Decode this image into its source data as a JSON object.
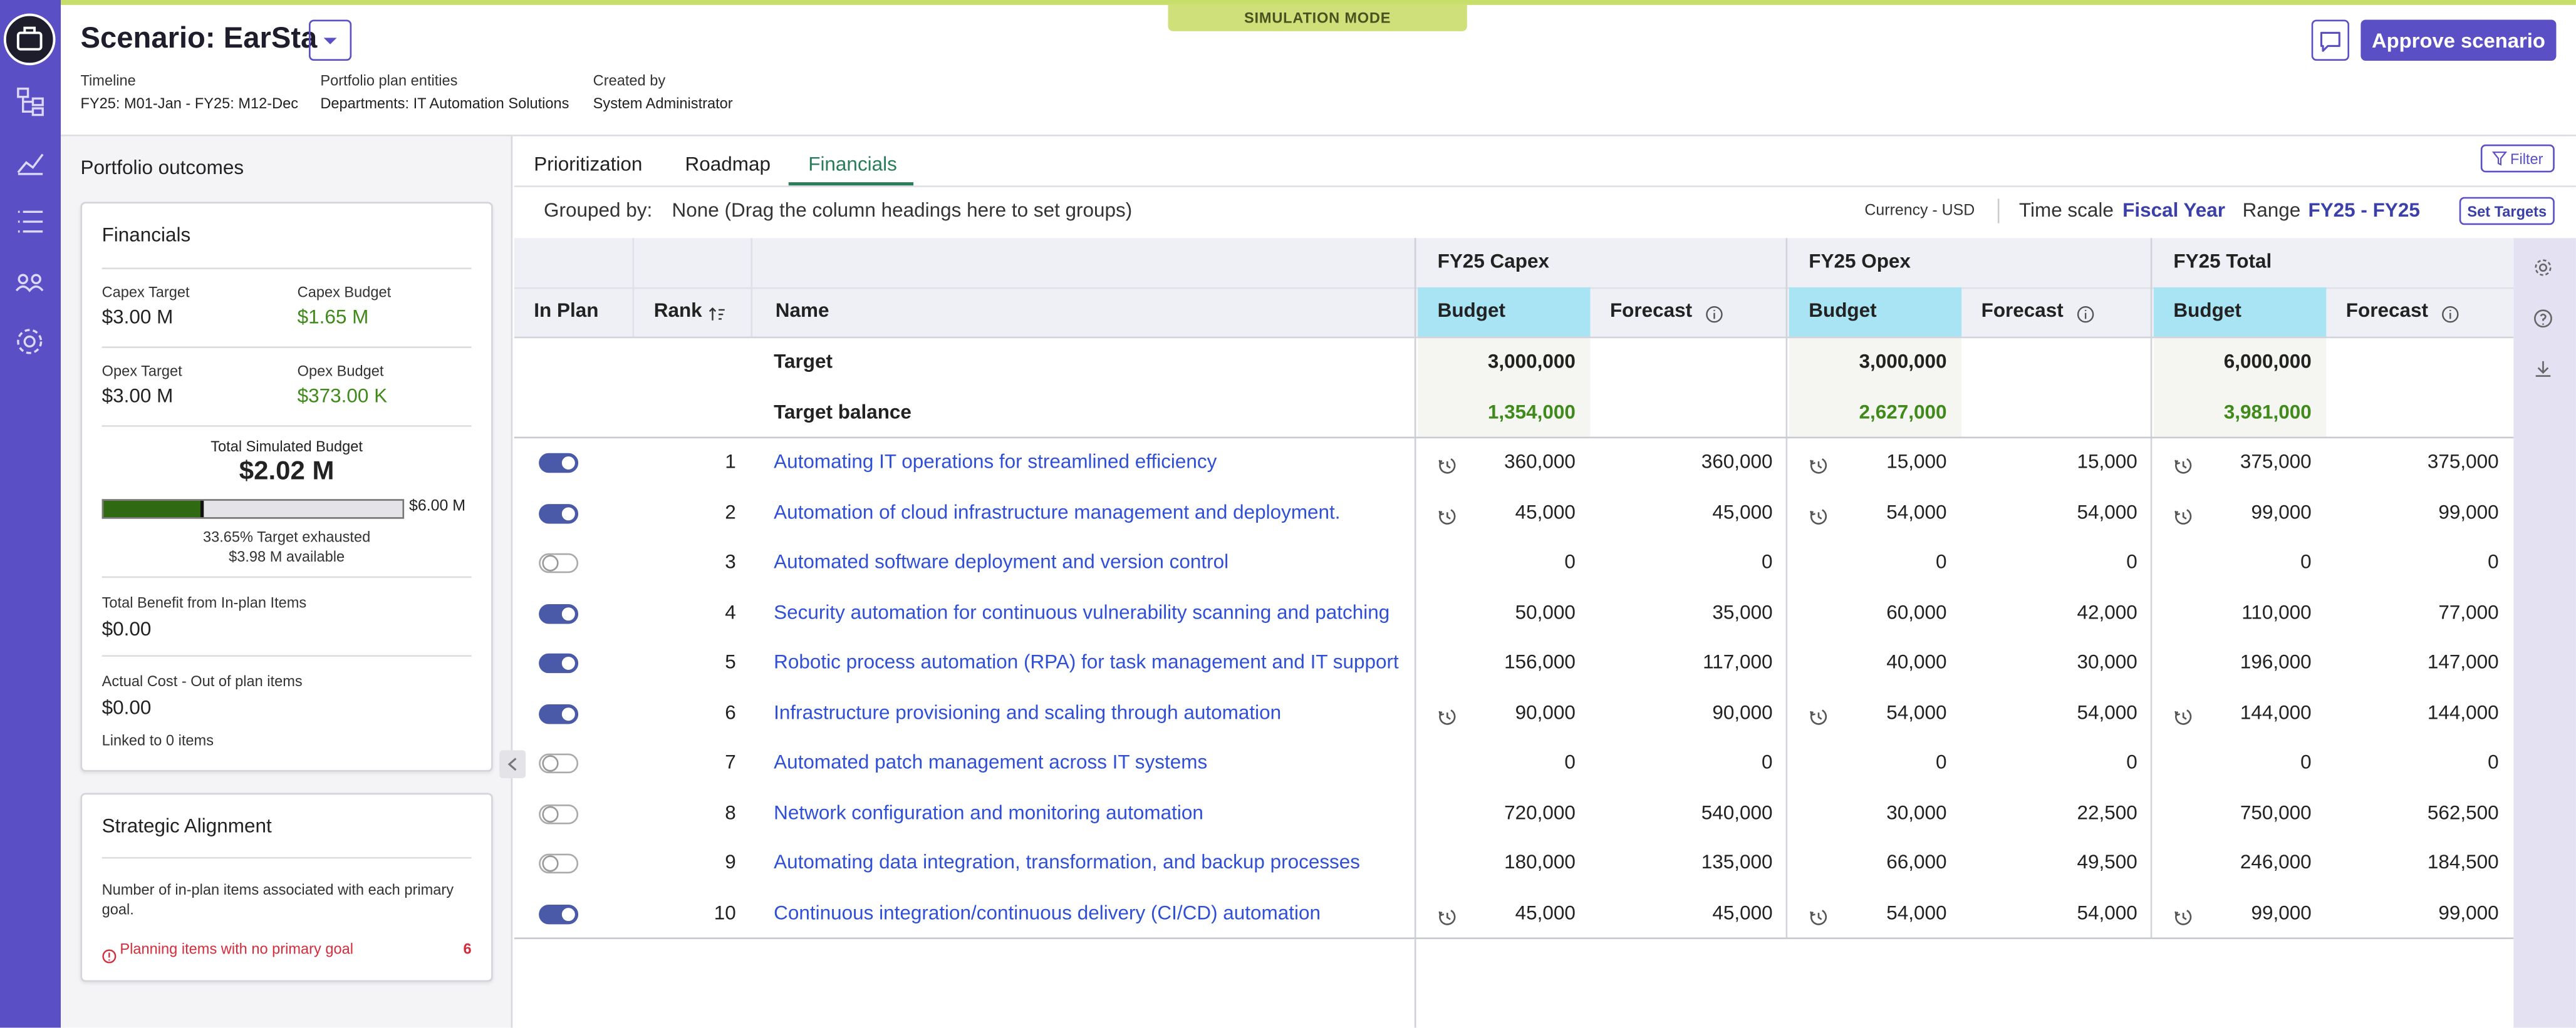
{
  "header": {
    "title": "Scenario: EarSta",
    "mode": "SIMULATION MODE",
    "approve": "Approve scenario",
    "meta": [
      {
        "label": "Timeline",
        "value": "FY25: M01-Jan - FY25: M12-Dec"
      },
      {
        "label": "Portfolio plan entities",
        "value": "Departments: IT Automation Solutions"
      },
      {
        "label": "Created by",
        "value": "System Administrator"
      }
    ]
  },
  "outcomes": {
    "title": "Portfolio outcomes",
    "financials": {
      "title": "Financials",
      "stats": [
        {
          "label": "Capex Target",
          "value": "$3.00 M"
        },
        {
          "label": "Capex Budget",
          "value": "$1.65 M"
        },
        {
          "label": "Opex Target",
          "value": "$3.00 M"
        },
        {
          "label": "Opex Budget",
          "value": "$373.00 K"
        }
      ],
      "total_label": "Total Simulated Budget",
      "total": "$2.02 M",
      "max": "$6.00 M",
      "progress": 33.65,
      "exhausted": "33.65% Target exhausted",
      "available": "$3.98 M available",
      "benefit_label": "Total Benefit from In-plan Items",
      "benefit": "$0.00",
      "cost_label": "Actual Cost - Out of plan items",
      "cost": "$0.00",
      "linked": "Linked to 0 items"
    },
    "alignment": {
      "title": "Strategic Alignment",
      "description": "Number of in-plan items associated with each primary goal.",
      "warning": "Planning items with no primary goal",
      "warning_count": 6
    }
  },
  "tabs": {
    "items": [
      "Prioritization",
      "Roadmap",
      "Financials"
    ],
    "active": 2
  },
  "toolbar": {
    "filter": "Filter",
    "grouped_label": "Grouped by:",
    "grouped_value": "None (Drag the column headings here to set groups)",
    "currency": "Currency - USD",
    "time_scale_label": "Time scale",
    "time_scale": "Fiscal Year",
    "range_label": "Range",
    "range": "FY25 - FY25",
    "set_targets": "Set Targets"
  },
  "table": {
    "columns": [
      "In Plan",
      "Rank",
      "Name"
    ],
    "groups": [
      "FY25 Capex",
      "FY25 Opex",
      "FY25 Total"
    ],
    "measures": [
      "Budget",
      "Forecast"
    ],
    "target": {
      "label": "Target",
      "values": [
        "3,000,000",
        "3,000,000",
        "6,000,000"
      ]
    },
    "balance": {
      "label": "Target balance",
      "values": [
        "1,354,000",
        "2,627,000",
        "3,981,000"
      ]
    },
    "rows": [
      {
        "in_plan": true,
        "rank": 1,
        "name": "Automating IT operations for streamlined efficiency",
        "history": true,
        "values": [
          "360,000",
          "360,000",
          "15,000",
          "15,000",
          "375,000",
          "375,000"
        ]
      },
      {
        "in_plan": true,
        "rank": 2,
        "name": "Automation of cloud infrastructure management and deployment.",
        "history": true,
        "values": [
          "45,000",
          "45,000",
          "54,000",
          "54,000",
          "99,000",
          "99,000"
        ]
      },
      {
        "in_plan": false,
        "rank": 3,
        "name": "Automated software deployment and version control",
        "history": false,
        "values": [
          "0",
          "0",
          "0",
          "0",
          "0",
          "0"
        ]
      },
      {
        "in_plan": true,
        "rank": 4,
        "name": "Security automation for continuous vulnerability scanning and patching",
        "history": false,
        "values": [
          "50,000",
          "35,000",
          "60,000",
          "42,000",
          "110,000",
          "77,000"
        ]
      },
      {
        "in_plan": true,
        "rank": 5,
        "name": "Robotic process automation (RPA) for task management and IT support",
        "history": false,
        "values": [
          "156,000",
          "117,000",
          "40,000",
          "30,000",
          "196,000",
          "147,000"
        ]
      },
      {
        "in_plan": true,
        "rank": 6,
        "name": "Infrastructure provisioning and scaling through automation",
        "history": true,
        "values": [
          "90,000",
          "90,000",
          "54,000",
          "54,000",
          "144,000",
          "144,000"
        ]
      },
      {
        "in_plan": false,
        "rank": 7,
        "name": "Automated patch management across IT systems",
        "history": false,
        "values": [
          "0",
          "0",
          "0",
          "0",
          "0",
          "0"
        ]
      },
      {
        "in_plan": false,
        "rank": 8,
        "name": "Network configuration and monitoring automation",
        "history": false,
        "values": [
          "720,000",
          "540,000",
          "30,000",
          "22,500",
          "750,000",
          "562,500"
        ]
      },
      {
        "in_plan": false,
        "rank": 9,
        "name": "Automating data integration, transformation, and backup processes",
        "history": false,
        "values": [
          "180,000",
          "135,000",
          "66,000",
          "49,500",
          "246,000",
          "184,500"
        ]
      },
      {
        "in_plan": true,
        "rank": 10,
        "name": "Continuous integration/continuous delivery (CI/CD) automation",
        "history": true,
        "values": [
          "45,000",
          "45,000",
          "54,000",
          "54,000",
          "99,000",
          "99,000"
        ]
      }
    ]
  }
}
